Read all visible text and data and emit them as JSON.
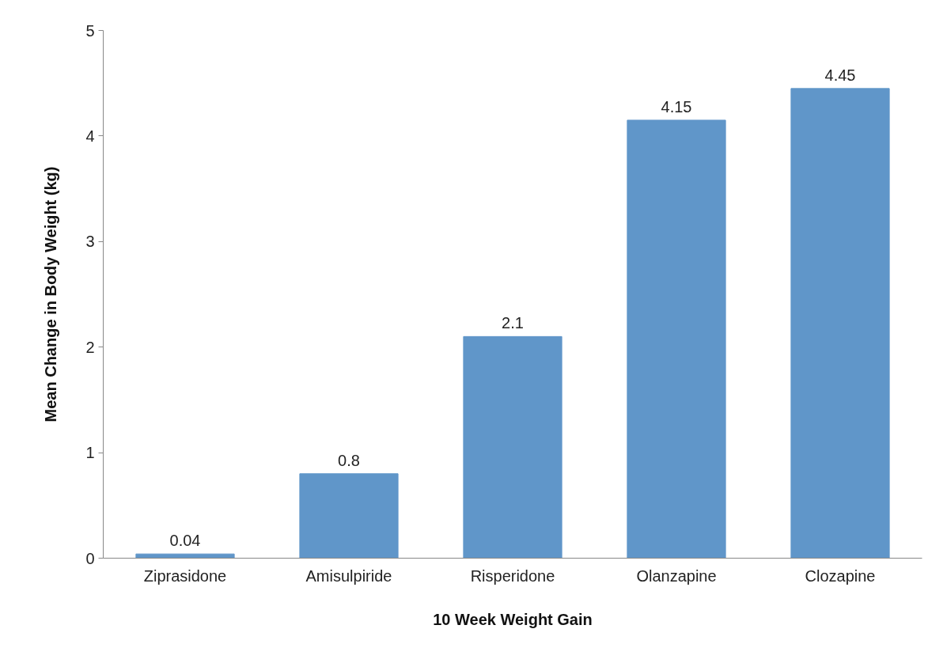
{
  "chart_data": {
    "type": "bar",
    "xlabel": "10 Week Weight Gain",
    "ylabel": "Mean Change in Body Weight (kg)",
    "categories": [
      "Ziprasidone",
      "Amisulpiride",
      "Risperidone",
      "Olanzapine",
      "Clozapine"
    ],
    "values": [
      0.04,
      0.8,
      2.1,
      4.15,
      4.45
    ],
    "color": "#6096c9",
    "ylim": [
      0,
      5
    ],
    "yticks": [
      0,
      1,
      2,
      3,
      4,
      5
    ],
    "grid": false,
    "data_labels": true
  }
}
